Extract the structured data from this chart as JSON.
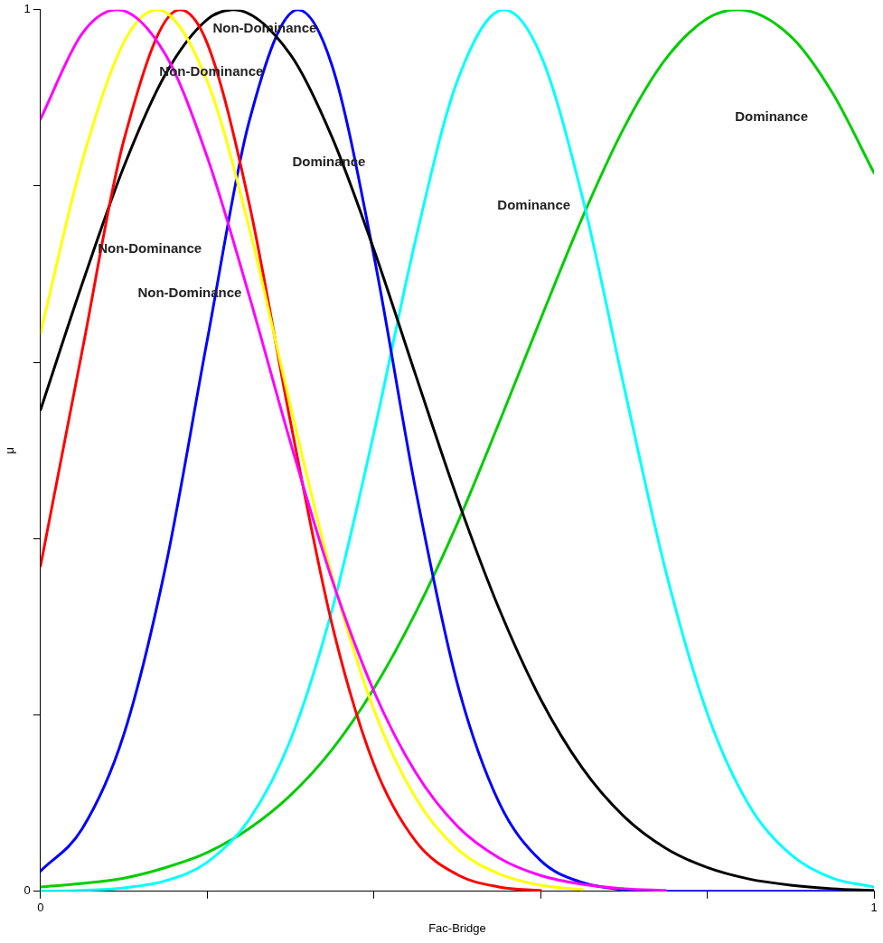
{
  "chart_data": {
    "type": "line",
    "xlabel": "Fac-Bridge",
    "ylabel": "μ",
    "xlim": [
      0,
      1
    ],
    "ylim": [
      0,
      1
    ],
    "xticks": [
      0,
      {
        "value": 0.2,
        "label": null
      },
      {
        "value": 0.4,
        "label": null
      },
      {
        "value": 0.6,
        "label": null
      },
      {
        "value": 0.8,
        "label": null
      },
      1
    ],
    "yticks": [
      0,
      {
        "value": 0.2,
        "label": null
      },
      {
        "value": 0.4,
        "label": null
      },
      {
        "value": 0.6,
        "label": null
      },
      {
        "value": 0.8,
        "label": null
      },
      1
    ],
    "grid": false,
    "legend": false,
    "marker": "none",
    "line_style": "solid",
    "series": [
      {
        "color": "#ff00ff",
        "x": [
          0,
          0.05,
          0.092,
          0.15,
          0.2,
          0.25,
          0.3,
          0.35,
          0.4,
          0.45,
          0.5,
          0.55,
          0.6,
          0.65,
          0.7,
          0.75
        ],
        "values": [
          0.876,
          0.973,
          1,
          0.949,
          0.833,
          0.677,
          0.509,
          0.353,
          0.227,
          0.135,
          0.074,
          0.038,
          0.018,
          0.008,
          0.003,
          0.001
        ]
      },
      {
        "color": "#ffff00",
        "x": [
          0,
          0.05,
          0.1,
          0.14,
          0.2,
          0.25,
          0.3,
          0.35,
          0.4,
          0.45,
          0.5,
          0.55,
          0.6,
          0.65
        ],
        "values": [
          0.633,
          0.828,
          0.963,
          1,
          0.919,
          0.754,
          0.55,
          0.357,
          0.206,
          0.106,
          0.048,
          0.02,
          0.007,
          0.002
        ]
      },
      {
        "color": "#ff0000",
        "x": [
          0,
          0.05,
          0.1,
          0.167,
          0.2,
          0.25,
          0.3,
          0.35,
          0.4,
          0.45,
          0.5,
          0.55,
          0.6
        ],
        "values": [
          0.369,
          0.613,
          0.852,
          1,
          0.962,
          0.782,
          0.532,
          0.302,
          0.144,
          0.057,
          0.019,
          0.005,
          0.001
        ]
      },
      {
        "color": "#000000",
        "x": [
          0,
          0.05,
          0.1,
          0.15,
          0.2,
          0.232,
          0.3,
          0.35,
          0.4,
          0.45,
          0.5,
          0.55,
          0.6,
          0.65,
          0.7,
          0.75,
          0.8,
          0.85,
          0.9,
          0.95,
          1
        ],
        "values": [
          0.546,
          0.689,
          0.822,
          0.927,
          0.989,
          1,
          0.949,
          0.855,
          0.728,
          0.586,
          0.446,
          0.321,
          0.218,
          0.14,
          0.085,
          0.049,
          0.027,
          0.014,
          0.007,
          0.003,
          0.001
        ]
      },
      {
        "color": "#0000ff",
        "x": [
          0,
          0.05,
          0.1,
          0.15,
          0.2,
          0.25,
          0.309,
          0.35,
          0.4,
          0.45,
          0.5,
          0.55,
          0.6,
          0.65,
          0.7,
          0.75,
          0.8,
          0.85,
          0.9,
          0.95,
          1
        ],
        "values": [
          0.023,
          0.071,
          0.178,
          0.368,
          0.625,
          0.872,
          1,
          0.936,
          0.721,
          0.456,
          0.236,
          0.101,
          0.035,
          0.01,
          0.002,
          0,
          0,
          0,
          0,
          0,
          0
        ]
      },
      {
        "color": "#00ffff",
        "x": [
          0,
          0.05,
          0.1,
          0.15,
          0.2,
          0.25,
          0.3,
          0.35,
          0.4,
          0.45,
          0.5,
          0.556,
          0.6,
          0.65,
          0.7,
          0.75,
          0.8,
          0.85,
          0.9,
          0.95,
          1
        ],
        "values": [
          0,
          0.001,
          0.004,
          0.012,
          0.033,
          0.081,
          0.172,
          0.32,
          0.52,
          0.739,
          0.919,
          1,
          0.949,
          0.788,
          0.573,
          0.364,
          0.202,
          0.098,
          0.042,
          0.015,
          0.005
        ]
      },
      {
        "color": "#00cd00",
        "x": [
          0,
          0.05,
          0.1,
          0.15,
          0.2,
          0.25,
          0.3,
          0.35,
          0.4,
          0.45,
          0.5,
          0.55,
          0.6,
          0.65,
          0.7,
          0.75,
          0.8,
          0.837,
          0.9,
          0.95,
          1
        ],
        "values": [
          0.005,
          0.009,
          0.015,
          0.027,
          0.044,
          0.071,
          0.109,
          0.161,
          0.23,
          0.316,
          0.417,
          0.531,
          0.649,
          0.764,
          0.866,
          0.944,
          0.99,
          1,
          0.97,
          0.906,
          0.815
        ]
      }
    ],
    "annotations": [
      "Non-Dominance",
      "Non-Dominance",
      "Dominance",
      "Non-Dominance",
      "Non-Dominance",
      "Dominance",
      "Dominance"
    ]
  }
}
